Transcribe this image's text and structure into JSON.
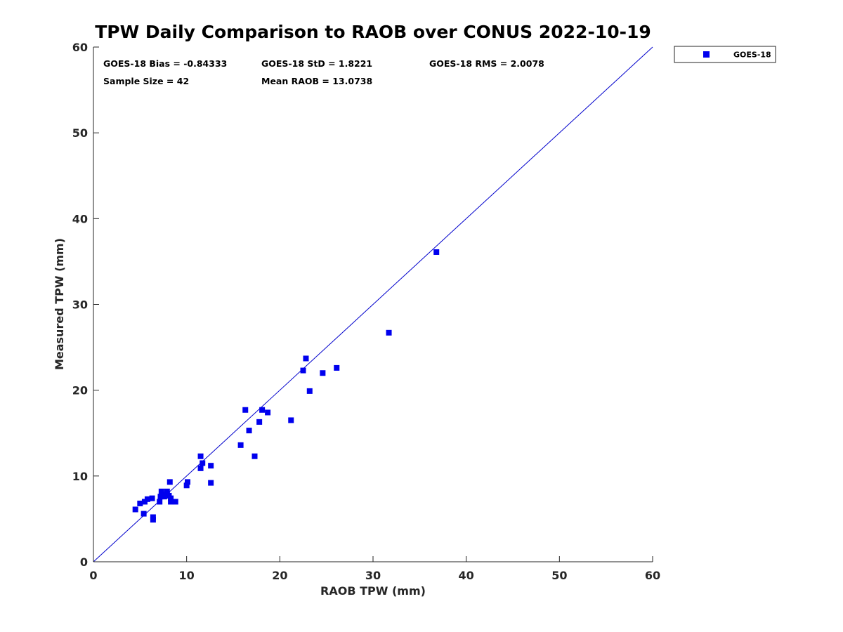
{
  "chart_data": {
    "type": "scatter",
    "title": "TPW Daily Comparison to RAOB over CONUS 2022-10-19",
    "xlabel": "RAOB TPW (mm)",
    "ylabel": "Measured TPW (mm)",
    "xlim": [
      0,
      60
    ],
    "ylim": [
      0,
      60
    ],
    "xticks": [
      "0",
      "10",
      "20",
      "30",
      "40",
      "50",
      "60"
    ],
    "yticks": [
      "0",
      "10",
      "20",
      "30",
      "40",
      "50",
      "60"
    ],
    "grid": false,
    "legend_position": "top-right, outside",
    "reference_line": {
      "name": "one-to-one line",
      "from": [
        0,
        0
      ],
      "to": [
        60,
        60
      ],
      "color": "#0000cc"
    },
    "stats": [
      {
        "name": "bias",
        "text": "GOES-18 Bias = -0.84333"
      },
      {
        "name": "stdev",
        "text": "GOES-18 StD = 1.8221"
      },
      {
        "name": "rms",
        "text": "GOES-18 RMS = 2.0078"
      },
      {
        "name": "sample-size",
        "text": "Sample Size = 42"
      },
      {
        "name": "mean-raob",
        "text": "Mean RAOB = 13.0738"
      }
    ],
    "series": [
      {
        "name": "GOES-18",
        "color": "#0000ee",
        "marker": "square",
        "points": [
          [
            4.5,
            6.1
          ],
          [
            5.0,
            6.8
          ],
          [
            5.4,
            5.6
          ],
          [
            5.5,
            7.0
          ],
          [
            5.8,
            7.3
          ],
          [
            6.3,
            7.4
          ],
          [
            6.4,
            5.2
          ],
          [
            6.4,
            4.9
          ],
          [
            7.1,
            7.0
          ],
          [
            7.2,
            7.6
          ],
          [
            7.3,
            8.2
          ],
          [
            7.4,
            7.8
          ],
          [
            7.6,
            7.6
          ],
          [
            7.9,
            7.9
          ],
          [
            7.9,
            8.2
          ],
          [
            8.1,
            7.7
          ],
          [
            8.2,
            9.3
          ],
          [
            8.3,
            7.0
          ],
          [
            8.3,
            7.4
          ],
          [
            8.8,
            7.0
          ],
          [
            10.0,
            8.9
          ],
          [
            10.1,
            9.3
          ],
          [
            11.5,
            12.3
          ],
          [
            11.5,
            10.9
          ],
          [
            11.7,
            11.5
          ],
          [
            12.6,
            11.2
          ],
          [
            12.6,
            9.2
          ],
          [
            15.8,
            13.6
          ],
          [
            16.3,
            17.7
          ],
          [
            16.7,
            15.3
          ],
          [
            17.3,
            12.3
          ],
          [
            17.8,
            16.3
          ],
          [
            18.1,
            17.7
          ],
          [
            18.7,
            17.4
          ],
          [
            21.2,
            16.5
          ],
          [
            22.5,
            22.3
          ],
          [
            22.8,
            23.7
          ],
          [
            23.2,
            19.9
          ],
          [
            24.6,
            22.0
          ],
          [
            26.1,
            22.6
          ],
          [
            31.7,
            26.7
          ],
          [
            36.8,
            36.1
          ]
        ]
      }
    ]
  }
}
